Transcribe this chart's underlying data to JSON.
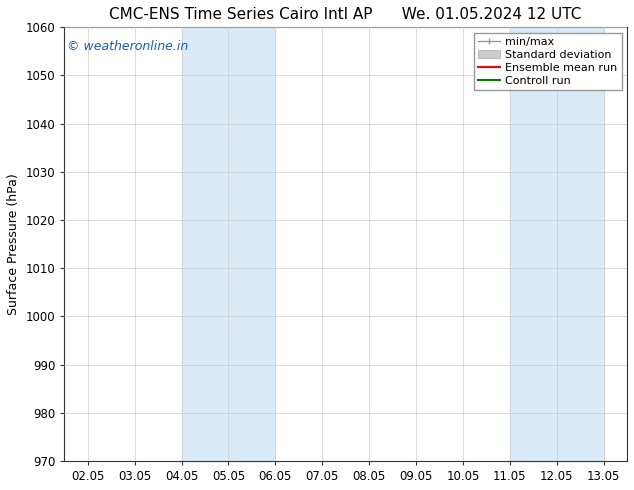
{
  "title_left": "CMC-ENS Time Series Cairo Intl AP",
  "title_right": "We. 01.05.2024 12 UTC",
  "ylabel": "Surface Pressure (hPa)",
  "ylim": [
    970,
    1060
  ],
  "yticks": [
    970,
    980,
    990,
    1000,
    1010,
    1020,
    1030,
    1040,
    1050,
    1060
  ],
  "xtick_labels": [
    "02.05",
    "03.05",
    "04.05",
    "05.05",
    "06.05",
    "07.05",
    "08.05",
    "09.05",
    "10.05",
    "11.05",
    "12.05",
    "13.05"
  ],
  "xtick_positions": [
    0,
    1,
    2,
    3,
    4,
    5,
    6,
    7,
    8,
    9,
    10,
    11
  ],
  "xlim": [
    -0.5,
    11.5
  ],
  "shaded_bands": [
    {
      "x_start": 2.0,
      "x_end": 2.5,
      "color": "#daeaf7"
    },
    {
      "x_start": 2.5,
      "x_end": 4.0,
      "color": "#daeaf7"
    },
    {
      "x_start": 9.0,
      "x_end": 9.5,
      "color": "#daeaf7"
    },
    {
      "x_start": 9.5,
      "x_end": 11.0,
      "color": "#daeaf7"
    }
  ],
  "watermark_text": "© weatheronline.in",
  "watermark_color": "#1a5cb5",
  "watermark_fontsize": 9,
  "grid_color": "#cccccc",
  "bg_color": "#ffffff",
  "title_fontsize": 11,
  "axis_fontsize": 9,
  "tick_fontsize": 8.5,
  "legend_fontsize": 8
}
